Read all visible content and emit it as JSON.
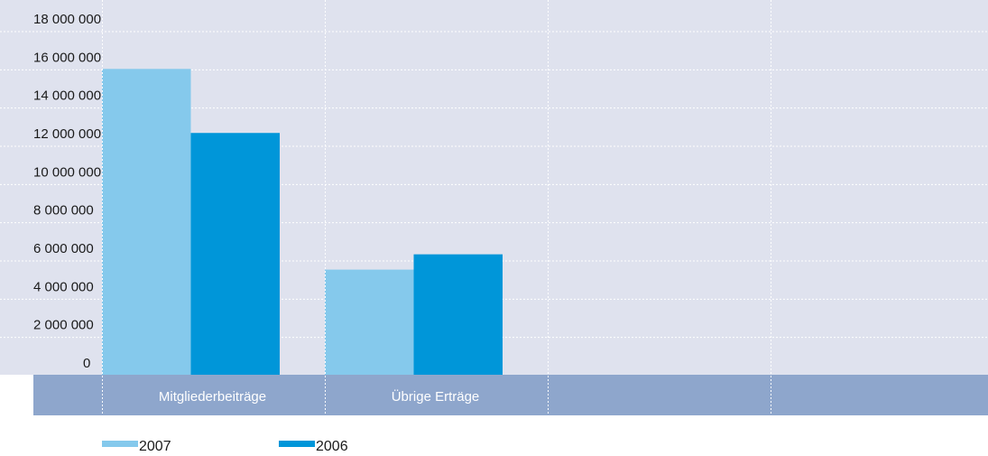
{
  "chart_data": {
    "type": "bar",
    "categories": [
      "Mitgliederbeiträge",
      "Übrige Erträge"
    ],
    "series": [
      {
        "name": "2007",
        "values": [
          16000000,
          5500000
        ]
      },
      {
        "name": "2006",
        "values": [
          12650000,
          6300000
        ]
      }
    ],
    "ylim": [
      0,
      18000000
    ],
    "yticks": [
      0,
      2000000,
      4000000,
      6000000,
      8000000,
      10000000,
      12000000,
      14000000,
      16000000,
      18000000
    ],
    "ytick_labels": [
      "0",
      "2 000 000",
      "4 000 000",
      "6 000 000",
      "8 000 000",
      "10 000 000",
      "12 000 000",
      "14 000 000",
      "16 000 000",
      "18 000 000"
    ],
    "grid": true,
    "legend": "bottom-left",
    "colors": {
      "plot_background": "#dfe2ee",
      "category_band": "#8ea6cc",
      "series_2007": "#85c9ec",
      "series_2006": "#0096d9",
      "grid": "#ffffff"
    }
  }
}
